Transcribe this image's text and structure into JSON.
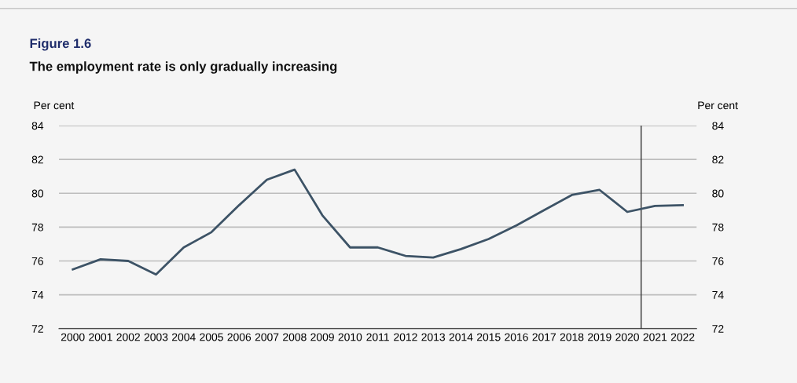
{
  "chart_data": {
    "type": "line",
    "title": "Figure 1.6",
    "subtitle": "The employment rate is only gradually increasing",
    "ylabel": "Per cent",
    "y2label": "Per cent",
    "x": [
      2000,
      2001,
      2002,
      2003,
      2004,
      2005,
      2006,
      2007,
      2008,
      2009,
      2010,
      2011,
      2012,
      2013,
      2014,
      2015,
      2016,
      2017,
      2018,
      2019,
      2020,
      2021,
      2022
    ],
    "series": [
      {
        "color": "#3d5366",
        "values": [
          75.5,
          76.1,
          76.0,
          75.2,
          76.8,
          77.7,
          79.3,
          80.8,
          81.4,
          78.7,
          76.8,
          76.8,
          76.3,
          76.2,
          76.7,
          77.3,
          78.1,
          79.0,
          79.9,
          80.2,
          78.9,
          79.25,
          79.3
        ]
      }
    ],
    "xlim": [
      1999.5,
      2022.5
    ],
    "xticks": [
      2000,
      2001,
      2002,
      2003,
      2004,
      2005,
      2006,
      2007,
      2008,
      2009,
      2010,
      2011,
      2012,
      2013,
      2014,
      2015,
      2016,
      2017,
      2018,
      2019,
      2020,
      2021,
      2022
    ],
    "ylim": [
      72,
      84
    ],
    "yticks": [
      72,
      74,
      76,
      78,
      80,
      82,
      84
    ],
    "y2lim": [
      72,
      84
    ],
    "y2ticks": [
      72,
      74,
      76,
      78,
      80,
      82,
      84
    ],
    "ref_lines": [
      {
        "axis": "x",
        "value": 2020.5,
        "color": "#333333"
      }
    ],
    "grid": "y",
    "legend": false,
    "marker": "none",
    "line_style": "solid"
  }
}
